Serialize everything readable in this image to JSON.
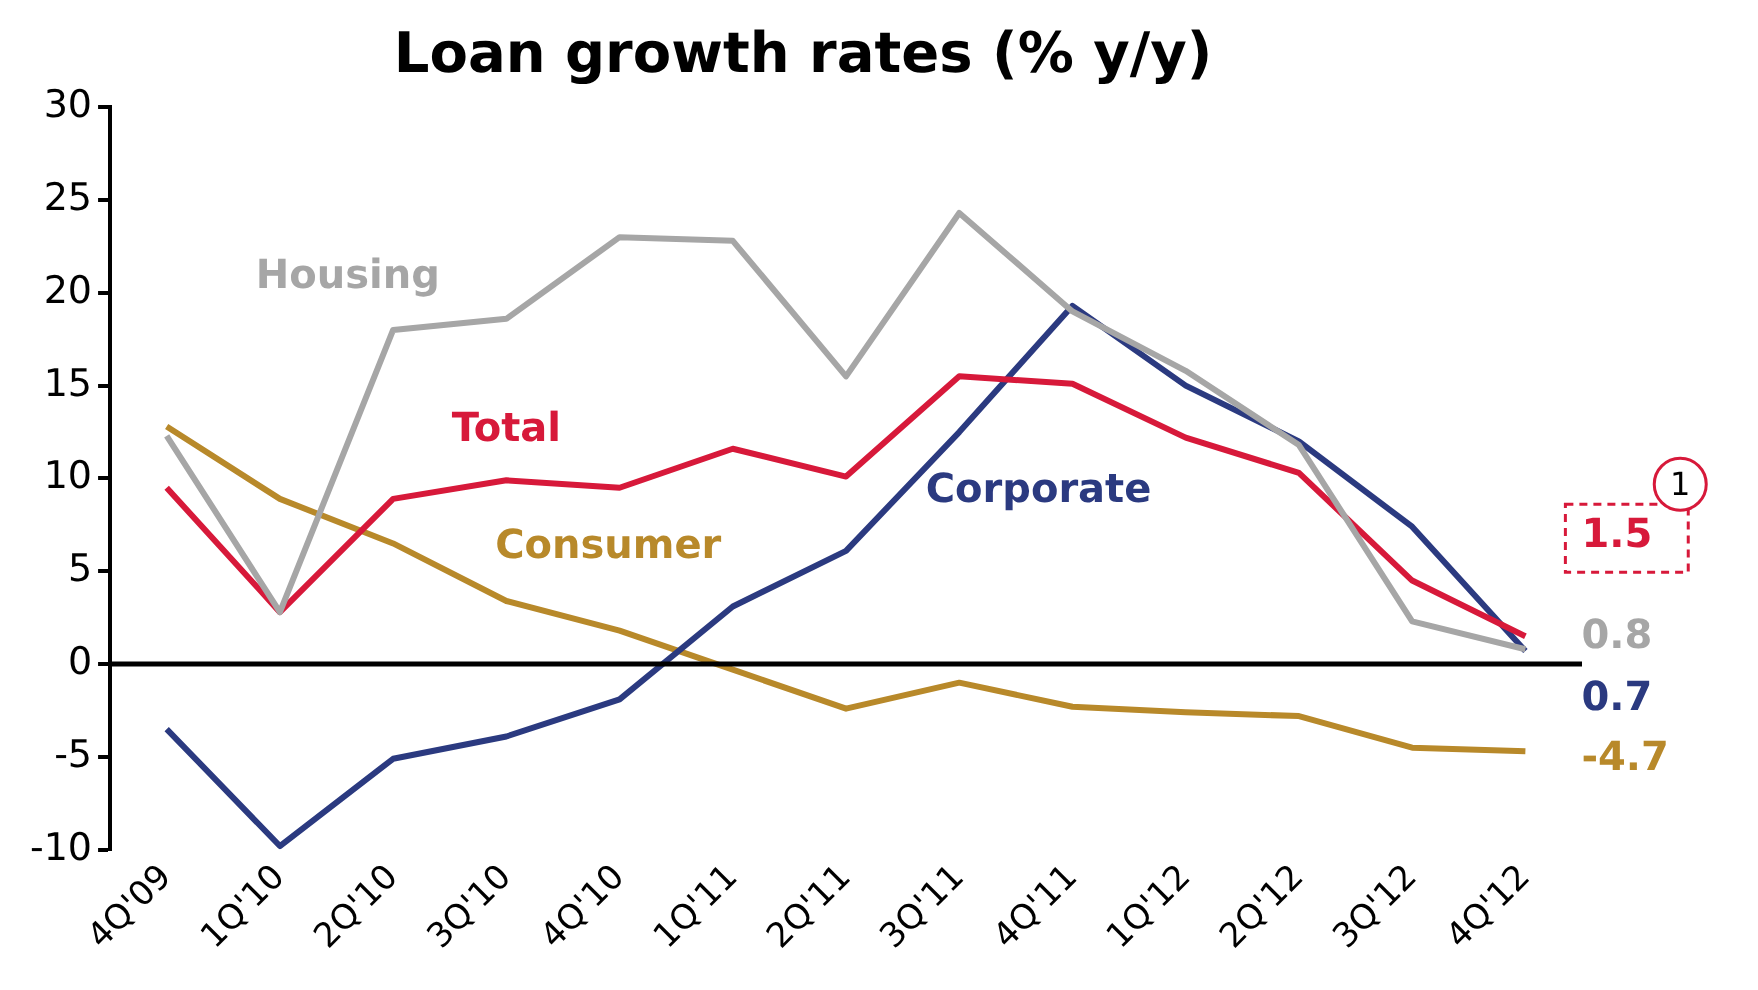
{
  "chart_data": {
    "type": "line",
    "title": "Loan growth rates (% y/y)",
    "categories": [
      "4Q'09",
      "1Q'10",
      "2Q'10",
      "3Q'10",
      "4Q'10",
      "1Q'11",
      "2Q'11",
      "3Q'11",
      "4Q'11",
      "1Q'12",
      "2Q'12",
      "3Q'12",
      "4Q'12"
    ],
    "series": [
      {
        "name": "Housing",
        "color": "#a6a6a6",
        "values": [
          12.3,
          2.8,
          18.0,
          18.6,
          23.0,
          22.8,
          15.5,
          24.3,
          19.0,
          15.8,
          11.8,
          2.3,
          0.8
        ],
        "value_labels": [
          null,
          null,
          null,
          null,
          null,
          null,
          null,
          null,
          null,
          null,
          null,
          null,
          "0.8"
        ]
      },
      {
        "name": "Total",
        "color": "#d7193a",
        "values": [
          9.5,
          2.8,
          8.9,
          9.9,
          9.5,
          11.6,
          10.1,
          15.5,
          15.1,
          12.2,
          10.3,
          4.5,
          1.5
        ],
        "value_labels": [
          null,
          null,
          null,
          null,
          null,
          null,
          null,
          null,
          null,
          null,
          null,
          null,
          "1.5"
        ]
      },
      {
        "name": "Corporate",
        "color": "#2b3a80",
        "values": [
          -3.5,
          -9.8,
          -5.1,
          -3.9,
          -1.9,
          3.1,
          6.1,
          12.5,
          19.3,
          15.0,
          12.0,
          7.4,
          0.7
        ],
        "value_labels": [
          null,
          null,
          null,
          null,
          null,
          null,
          null,
          null,
          null,
          null,
          null,
          null,
          "0.7"
        ]
      },
      {
        "name": "Consumer",
        "color": "#b8892a",
        "values": [
          12.8,
          8.9,
          6.5,
          3.4,
          1.8,
          -0.3,
          -2.4,
          -1.0,
          -2.3,
          -2.6,
          -2.8,
          -4.5,
          -4.7
        ],
        "value_labels": [
          null,
          null,
          null,
          null,
          null,
          null,
          null,
          null,
          null,
          null,
          null,
          null,
          "-4.7"
        ]
      }
    ],
    "annotations": [
      "1"
    ],
    "ref_lines": [
      {
        "axis": "y",
        "value": 0,
        "color": "#000000",
        "line_style": "solid"
      }
    ],
    "ylim": [
      -10,
      30
    ],
    "yticks": [
      -10,
      -5,
      0,
      5,
      10,
      15,
      20,
      25,
      30
    ],
    "grid": false,
    "legend": false,
    "marker": "none",
    "line_style": "solid"
  }
}
